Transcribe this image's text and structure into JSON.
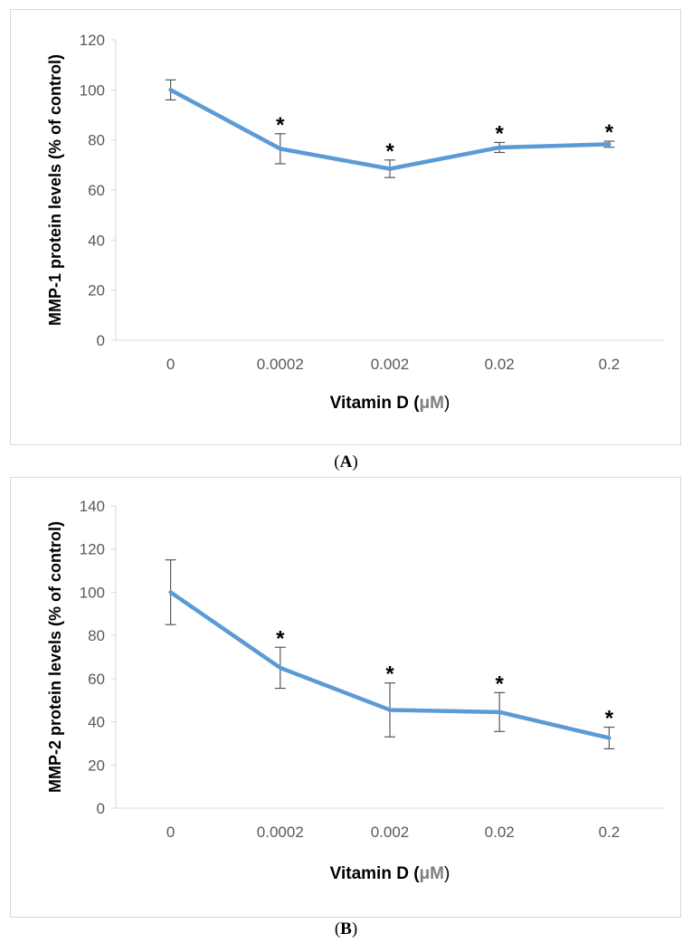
{
  "chart_data": [
    {
      "type": "line",
      "panel_label": "A",
      "categories": [
        "0",
        "0.0002",
        "0.002",
        "0.02",
        "0.2"
      ],
      "values": [
        100,
        76.5,
        68.5,
        77,
        78.3
      ],
      "errors": [
        4,
        6,
        3.5,
        2,
        1.2
      ],
      "significance": [
        "",
        "*",
        "*",
        "*",
        "*"
      ],
      "xlabel": "Vitamin D (μM)",
      "xlabel_main": "Vitamin D (",
      "xlabel_unit": "μM",
      "xlabel_close": ")",
      "ylabel": "MMP-1 protein levels (% of control)",
      "ylim": [
        0,
        120
      ],
      "yticks": [
        0,
        20,
        40,
        60,
        80,
        100,
        120
      ],
      "grid": false,
      "line_color": "#5b9bd5",
      "error_color": "#595959"
    },
    {
      "type": "line",
      "panel_label": "B",
      "categories": [
        "0",
        "0.0002",
        "0.002",
        "0.02",
        "0.2"
      ],
      "values": [
        100,
        65,
        45.5,
        44.5,
        32.5
      ],
      "errors": [
        15,
        9.5,
        12.5,
        9,
        5
      ],
      "significance": [
        "",
        "*",
        "*",
        "*",
        "*"
      ],
      "xlabel": "Vitamin D (μM)",
      "xlabel_main": "Vitamin D (",
      "xlabel_unit": "μM",
      "xlabel_close": ")",
      "ylabel": "MMP-2 protein levels (% of control)",
      "ylim": [
        0,
        140
      ],
      "yticks": [
        0,
        20,
        40,
        60,
        80,
        100,
        120,
        140
      ],
      "grid": false,
      "line_color": "#5b9bd5",
      "error_color": "#595959"
    }
  ]
}
